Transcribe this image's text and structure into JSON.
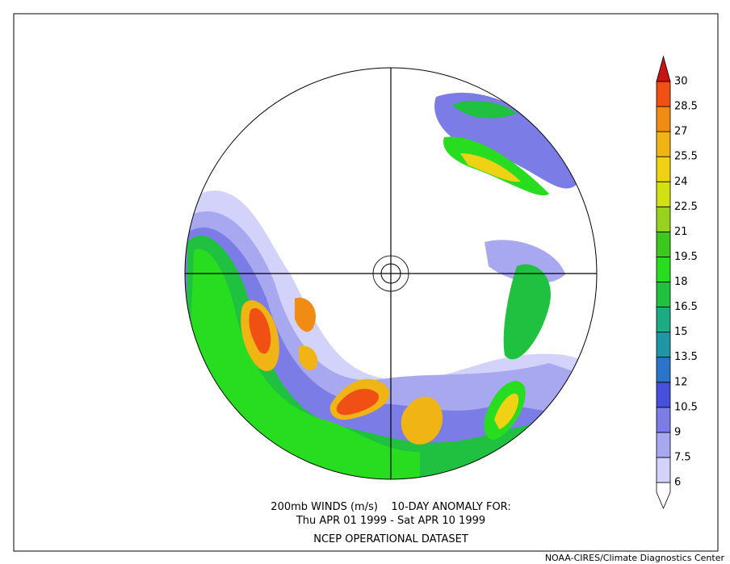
{
  "map": {
    "caption": [
      "200mb WINDS (m/s)    10-DAY ANOMALY FOR:",
      "Thu APR 01 1999 - Sat APR 10 1999",
      "NCEP OPERATIONAL DATASET"
    ],
    "credit": "NOAA-CIRES/Climate Diagnostics Center",
    "legend": {
      "levels": [
        6,
        7.5,
        9,
        10.5,
        12,
        13.5,
        15,
        16.5,
        18,
        19.5,
        21,
        22.5,
        24,
        25.5,
        27,
        28.5,
        30
      ],
      "colors": [
        "#ffffff",
        "#d2d2fa",
        "#a8a8f0",
        "#7c7ce6",
        "#4650dc",
        "#2a74cc",
        "#1e96a6",
        "#1eaa82",
        "#20c040",
        "#28dc20",
        "#3cc81e",
        "#96d21e",
        "#d2e114",
        "#f0d214",
        "#f0b414",
        "#f08c14",
        "#f05014",
        "#c81414"
      ]
    }
  }
}
